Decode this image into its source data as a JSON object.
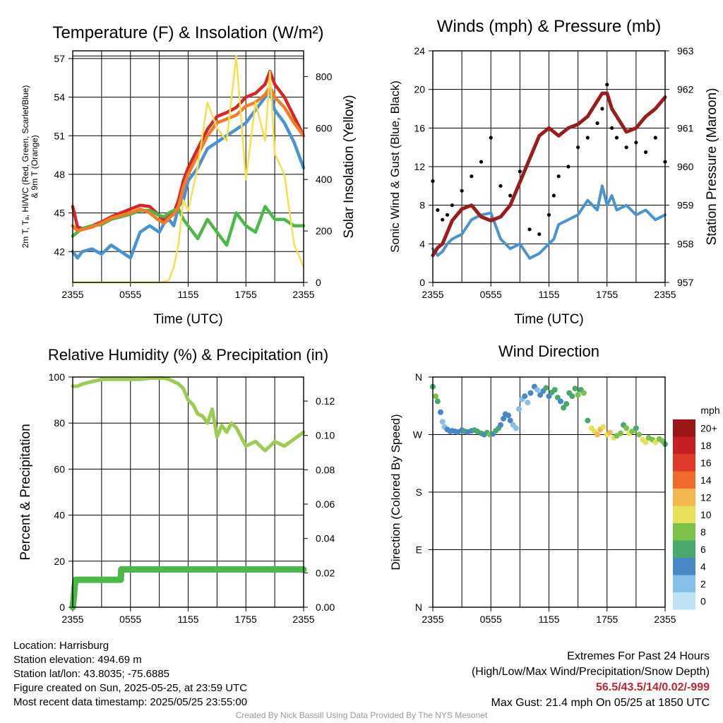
{
  "colors": {
    "red": "#d62728",
    "green": "#4cb848",
    "blue": "#4a93d0",
    "orange": "#f27c2a",
    "yellow": "#f6e04f",
    "maroon": "#9b1c1c",
    "rh": "#9ccc52",
    "precip": "#4cb848",
    "black": "#000000"
  },
  "panels": {
    "temp": {
      "title": "Temperature (F) & Insolation (W/m²)"
    },
    "wind": {
      "title": "Winds (mph) & Pressure (mb)"
    },
    "rh": {
      "title": "Relative Humidity (%) & Precipitation (in)"
    },
    "dir": {
      "title": "Wind Direction"
    }
  },
  "chart_data": [
    {
      "id": "temp",
      "type": "line",
      "title": "Temperature (F) & Insolation (W/m²)",
      "xlabel": "Time (UTC)",
      "ylabel_lines": [
        "2m T, Tₐ, HI/WC (Red, Green, Scarlet/Blue)",
        "& 9m T (Orange)"
      ],
      "ylabel": "2m T, Td, HI/WC (Red, Green, Scarlet/Blue) & 9m T (Orange)",
      "y2label": "Solar Insolation (Yellow)",
      "x_ticks": [
        "2355",
        "0555",
        "1155",
        "1755",
        "2355"
      ],
      "xlim": [
        0,
        24
      ],
      "ylim": [
        39.6,
        57.6
      ],
      "y2lim": [
        0,
        900
      ],
      "y_ticks": [
        42,
        45,
        48,
        51,
        54,
        57
      ],
      "y2_ticks": [
        0,
        200,
        400,
        600,
        800
      ],
      "x": [
        0,
        0.5,
        1,
        2,
        3,
        4,
        5,
        6,
        7,
        8,
        9,
        9.5,
        10,
        10.5,
        11,
        11.5,
        12,
        13,
        14,
        15,
        16,
        17,
        18,
        19,
        20,
        20.5,
        21,
        22,
        23,
        24
      ],
      "series": [
        {
          "name": "2m T",
          "color": "red",
          "values": [
            45.5,
            43.9,
            43.8,
            44.0,
            44.3,
            44.7,
            45.0,
            45.3,
            45.6,
            45.5,
            44.8,
            44.4,
            44.8,
            45.0,
            46.0,
            47.5,
            48.5,
            50.0,
            51.5,
            52.5,
            52.8,
            53.2,
            54.0,
            54.3,
            55.0,
            56.0,
            55.0,
            54.0,
            52.5,
            51.0
          ]
        },
        {
          "name": "HI/WC",
          "color": "blue",
          "values": [
            42.0,
            41.5,
            42.0,
            42.2,
            41.8,
            42.5,
            42.0,
            41.5,
            43.5,
            44.0,
            43.5,
            44.2,
            44.5,
            44.0,
            45.5,
            46.0,
            47.5,
            48.5,
            50.0,
            50.5,
            51.0,
            51.5,
            52.0,
            53.0,
            54.0,
            54.5,
            53.0,
            52.0,
            50.5,
            48.5
          ]
        },
        {
          "name": "Td",
          "color": "green",
          "values": [
            43.2,
            43.5,
            43.8,
            44.0,
            44.1,
            44.5,
            44.7,
            44.9,
            45.2,
            45.2,
            44.8,
            44.7,
            45.0,
            45.2,
            45.3,
            44.5,
            44.0,
            43.0,
            44.5,
            43.5,
            42.5,
            45.0,
            44.0,
            43.5,
            45.5,
            45.0,
            44.5,
            44.5,
            44.0,
            44.0
          ]
        },
        {
          "name": "9m T",
          "color": "orange",
          "values": [
            44.0,
            43.6,
            43.7,
            43.9,
            44.2,
            44.6,
            44.8,
            45.0,
            45.3,
            45.0,
            44.4,
            44.2,
            44.6,
            44.9,
            45.5,
            47.0,
            48.0,
            49.5,
            51.0,
            52.0,
            52.3,
            52.6,
            53.3,
            53.6,
            54.2,
            54.8,
            54.0,
            53.2,
            52.0,
            51.0
          ]
        },
        {
          "name": "Solar Insolation",
          "color": "yellow",
          "axis": "right",
          "values": [
            0,
            0,
            0,
            0,
            0,
            0,
            0,
            0,
            0,
            0,
            0,
            2,
            10,
            60,
            150,
            320,
            280,
            450,
            700,
            600,
            550,
            880,
            400,
            700,
            550,
            820,
            500,
            420,
            150,
            60
          ]
        }
      ]
    },
    {
      "id": "wind",
      "type": "line",
      "title": "Winds (mph) & Pressure (mb)",
      "xlabel": "Time (UTC)",
      "ylabel": "Sonic Wind & Gust (Blue, Black)",
      "y2label": "Station Pressure (Maroon)",
      "x_ticks": [
        "2355",
        "0555",
        "1155",
        "1755",
        "2355"
      ],
      "xlim": [
        0,
        24
      ],
      "ylim": [
        0,
        24
      ],
      "y2lim": [
        957,
        963
      ],
      "y_ticks": [
        0,
        4,
        8,
        12,
        16,
        20,
        24
      ],
      "y2_ticks": [
        957,
        958,
        959,
        960,
        961,
        962,
        963
      ],
      "x": [
        0,
        0.5,
        1,
        1.5,
        2,
        3,
        4,
        5,
        6,
        7,
        8,
        9,
        10,
        11,
        12,
        12.5,
        13,
        14,
        15,
        16,
        17,
        17.5,
        18,
        18.5,
        19,
        20,
        21,
        22,
        23,
        24
      ],
      "series": [
        {
          "name": "Sonic Wind",
          "color": "blue",
          "values": [
            3.5,
            2.8,
            3.2,
            4.0,
            4.5,
            5.0,
            6.5,
            7.0,
            7.2,
            4.5,
            3.5,
            4.0,
            2.5,
            3.0,
            4.0,
            4.5,
            6.0,
            6.5,
            7.0,
            8.5,
            7.5,
            10.0,
            8.0,
            9.0,
            7.5,
            8.0,
            7.0,
            7.5,
            6.5,
            7.0
          ]
        },
        {
          "name": "Gust",
          "color": "black",
          "values": [
            10.5,
            7.5,
            6.5,
            7.0,
            8.0,
            9.5,
            11.0,
            12.5,
            15.0,
            10.0,
            9.0,
            11.5,
            5.5,
            5.0,
            7.0,
            9.0,
            11.0,
            12.0,
            14.0,
            15.0,
            16.5,
            18.0,
            20.5,
            16.0,
            15.0,
            14.0,
            14.5,
            13.5,
            15.0,
            12.5
          ]
        },
        {
          "name": "Station Pressure",
          "color": "maroon",
          "axis": "right",
          "values": [
            957.7,
            957.9,
            958.0,
            958.3,
            958.6,
            958.9,
            959.0,
            958.7,
            958.6,
            958.7,
            959.0,
            959.6,
            960.2,
            960.8,
            961.0,
            960.9,
            960.8,
            961.0,
            961.1,
            961.3,
            961.7,
            961.9,
            961.9,
            961.5,
            961.3,
            960.9,
            961.0,
            961.3,
            961.5,
            961.8
          ]
        }
      ]
    },
    {
      "id": "rh",
      "type": "line",
      "title": "Relative Humidity (%) & Precipitation (in)",
      "xlabel": "",
      "ylabel": "Percent & Precipitation",
      "x_ticks": [
        "2355",
        "0555",
        "1155",
        "1755",
        "2355"
      ],
      "xlim": [
        0,
        24
      ],
      "ylim": [
        0,
        100
      ],
      "y2lim": [
        0,
        0.134
      ],
      "y_ticks": [
        0,
        20,
        40,
        60,
        80,
        100
      ],
      "y2_ticks": [
        "0.00",
        "0.02",
        "0.04",
        "0.06",
        "0.08",
        "0.10",
        "0.12"
      ],
      "series": [
        {
          "name": "Relative Humidity",
          "color": "rh",
          "x": [
            0,
            0.5,
            1,
            2,
            3,
            4,
            5,
            6,
            7,
            8,
            9,
            9.5,
            10,
            10.5,
            11,
            11.5,
            12,
            12.5,
            13,
            13.5,
            14,
            14.5,
            15,
            15.5,
            16,
            16.5,
            17,
            18,
            19,
            20,
            21,
            22,
            23,
            24
          ],
          "values": [
            96,
            96,
            97,
            98,
            99,
            99,
            99,
            99,
            99,
            99.5,
            99.5,
            99.5,
            99,
            98,
            97,
            95,
            90,
            88,
            84,
            83,
            80,
            86,
            74,
            79,
            76,
            80,
            78,
            70,
            72,
            68,
            72,
            70,
            73,
            76
          ]
        },
        {
          "name": "Precipitation",
          "color": "precip",
          "axis": "right",
          "x": [
            0,
            0.15,
            0.2,
            0.3,
            0.5,
            5,
            5.05,
            24
          ],
          "values": [
            0,
            0.008,
            0.012,
            0.016,
            0.016,
            0.016,
            0.022,
            0.022
          ]
        }
      ]
    },
    {
      "id": "dir",
      "type": "scatter",
      "title": "Wind Direction",
      "ylabel": "Direction (Colored By Speed)",
      "x_ticks": [
        "2355",
        "0555",
        "1155",
        "1755",
        "2355"
      ],
      "y_ticks": [
        "N",
        "E",
        "S",
        "W",
        "N"
      ],
      "xlim": [
        0,
        24
      ],
      "ylim": [
        0,
        360
      ],
      "colorbar": {
        "title": "mph",
        "labels": [
          "0",
          "2",
          "4",
          "6",
          "8",
          "10",
          "12",
          "14",
          "16",
          "18",
          "20+"
        ],
        "colors": [
          "#bfe3f5",
          "#86c0e8",
          "#4a87c7",
          "#4aa86f",
          "#7cc14a",
          "#e6e05a",
          "#f4b64e",
          "#f06b2c",
          "#e03a2a",
          "#c41f22",
          "#9b1619"
        ]
      },
      "points": [
        {
          "x": 0,
          "y": 345,
          "s": 6
        },
        {
          "x": 0.3,
          "y": 330,
          "s": 8
        },
        {
          "x": 0.5,
          "y": 322,
          "s": 6
        },
        {
          "x": 0.8,
          "y": 305,
          "s": 3
        },
        {
          "x": 1.0,
          "y": 290,
          "s": 2
        },
        {
          "x": 1.2,
          "y": 282,
          "s": 2
        },
        {
          "x": 1.5,
          "y": 278,
          "s": 3
        },
        {
          "x": 1.8,
          "y": 275,
          "s": 4
        },
        {
          "x": 2.0,
          "y": 276,
          "s": 4
        },
        {
          "x": 2.3,
          "y": 275,
          "s": 3
        },
        {
          "x": 2.6,
          "y": 274,
          "s": 4
        },
        {
          "x": 3.0,
          "y": 277,
          "s": 4
        },
        {
          "x": 3.3,
          "y": 275,
          "s": 5
        },
        {
          "x": 3.6,
          "y": 274,
          "s": 4
        },
        {
          "x": 4.0,
          "y": 276,
          "s": 3
        },
        {
          "x": 4.3,
          "y": 277,
          "s": 5
        },
        {
          "x": 4.6,
          "y": 275,
          "s": 6
        },
        {
          "x": 5.0,
          "y": 272,
          "s": 5
        },
        {
          "x": 5.3,
          "y": 270,
          "s": 4
        },
        {
          "x": 5.6,
          "y": 273,
          "s": 6
        },
        {
          "x": 5.9,
          "y": 270,
          "s": 7
        },
        {
          "x": 6.2,
          "y": 271,
          "s": 4
        },
        {
          "x": 6.5,
          "y": 276,
          "s": 6
        },
        {
          "x": 6.8,
          "y": 280,
          "s": 5
        },
        {
          "x": 7.0,
          "y": 285,
          "s": 4
        },
        {
          "x": 7.3,
          "y": 295,
          "s": 3
        },
        {
          "x": 7.5,
          "y": 302,
          "s": 4
        },
        {
          "x": 7.8,
          "y": 300,
          "s": 3
        },
        {
          "x": 8.0,
          "y": 292,
          "s": 3
        },
        {
          "x": 8.3,
          "y": 285,
          "s": 2
        },
        {
          "x": 8.6,
          "y": 280,
          "s": 2
        },
        {
          "x": 8.9,
          "y": 310,
          "s": 2
        },
        {
          "x": 9.2,
          "y": 325,
          "s": 2
        },
        {
          "x": 9.5,
          "y": 330,
          "s": 3
        },
        {
          "x": 9.8,
          "y": 320,
          "s": 2
        },
        {
          "x": 10.1,
          "y": 335,
          "s": 3
        },
        {
          "x": 10.5,
          "y": 345,
          "s": 3
        },
        {
          "x": 10.8,
          "y": 340,
          "s": 2
        },
        {
          "x": 11.1,
          "y": 332,
          "s": 4
        },
        {
          "x": 11.4,
          "y": 338,
          "s": 4
        },
        {
          "x": 11.7,
          "y": 343,
          "s": 5
        },
        {
          "x": 12.0,
          "y": 330,
          "s": 4
        },
        {
          "x": 12.3,
          "y": 336,
          "s": 5
        },
        {
          "x": 12.6,
          "y": 340,
          "s": 6
        },
        {
          "x": 12.9,
          "y": 328,
          "s": 5
        },
        {
          "x": 13.2,
          "y": 322,
          "s": 4
        },
        {
          "x": 13.5,
          "y": 312,
          "s": 6
        },
        {
          "x": 13.8,
          "y": 318,
          "s": 5
        },
        {
          "x": 14.1,
          "y": 335,
          "s": 6
        },
        {
          "x": 14.4,
          "y": 330,
          "s": 5
        },
        {
          "x": 14.7,
          "y": 342,
          "s": 6
        },
        {
          "x": 15.0,
          "y": 332,
          "s": 7
        },
        {
          "x": 15.3,
          "y": 340,
          "s": 6
        },
        {
          "x": 15.6,
          "y": 335,
          "s": 7
        },
        {
          "x": 16.0,
          "y": 292,
          "s": 6
        },
        {
          "x": 16.4,
          "y": 280,
          "s": 9
        },
        {
          "x": 16.7,
          "y": 275,
          "s": 10
        },
        {
          "x": 17.0,
          "y": 270,
          "s": 12
        },
        {
          "x": 17.3,
          "y": 278,
          "s": 11
        },
        {
          "x": 17.6,
          "y": 282,
          "s": 9
        },
        {
          "x": 18.0,
          "y": 270,
          "s": 10
        },
        {
          "x": 18.3,
          "y": 273,
          "s": 11
        },
        {
          "x": 18.7,
          "y": 265,
          "s": 10
        },
        {
          "x": 19.0,
          "y": 268,
          "s": 8
        },
        {
          "x": 19.4,
          "y": 272,
          "s": 7
        },
        {
          "x": 19.7,
          "y": 285,
          "s": 6
        },
        {
          "x": 20.0,
          "y": 280,
          "s": 8
        },
        {
          "x": 20.3,
          "y": 272,
          "s": 9
        },
        {
          "x": 20.6,
          "y": 275,
          "s": 7
        },
        {
          "x": 21.0,
          "y": 280,
          "s": 6
        },
        {
          "x": 21.3,
          "y": 270,
          "s": 8
        },
        {
          "x": 21.7,
          "y": 262,
          "s": 9
        },
        {
          "x": 22.0,
          "y": 258,
          "s": 10
        },
        {
          "x": 22.3,
          "y": 265,
          "s": 8
        },
        {
          "x": 22.7,
          "y": 262,
          "s": 7
        },
        {
          "x": 23.0,
          "y": 258,
          "s": 9
        },
        {
          "x": 23.4,
          "y": 263,
          "s": 8
        },
        {
          "x": 23.7,
          "y": 260,
          "s": 7
        },
        {
          "x": 24.0,
          "y": 255,
          "s": 6
        }
      ]
    }
  ],
  "info": {
    "location": "Location: Harrisburg",
    "elevation": "Station elevation: 494.69 m",
    "latlon": "Station lat/lon: 43.8035; -75.6885",
    "created": "Figure created on Sun, 2025-05-25, at 23:59 UTC",
    "recent": "Most recent data timestamp: 2025/05/25 23:55:00"
  },
  "extremes": {
    "title": "Extremes For Past 24 Hours",
    "subtitle": "(High/Low/Max Wind/Precipitation/Snow Depth)",
    "values": "56.5/43.5/14/0.02/-999",
    "max_gust": "Max Gust: 21.4 mph On 05/25 at 1850 UTC"
  },
  "credit": "Created By Nick Bassill Using Data Provided By The NYS Mesonet"
}
